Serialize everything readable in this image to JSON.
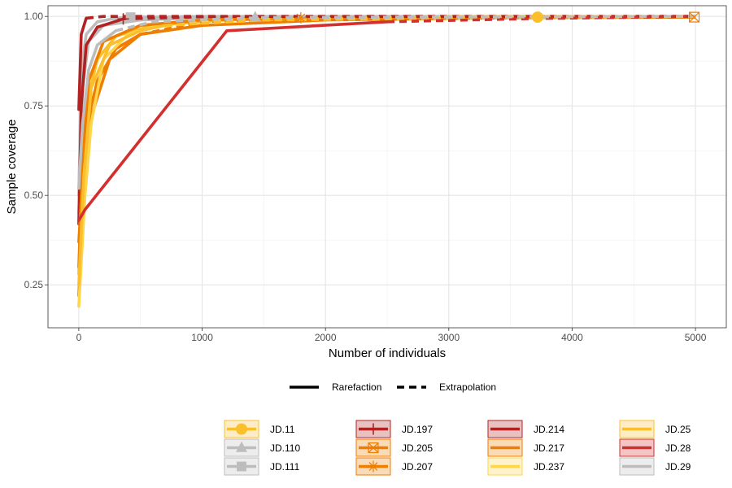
{
  "chart_data": {
    "type": "line",
    "xlabel": "Number of individuals",
    "ylabel": "Sample coverage",
    "xlim": [
      -250,
      5250
    ],
    "ylim": [
      0.13,
      1.03
    ],
    "x_ticks": [
      0,
      1000,
      2000,
      3000,
      4000,
      5000
    ],
    "x_tick_labels": [
      "0",
      "1000",
      "2000",
      "3000",
      "4000",
      "5000"
    ],
    "y_ticks": [
      0.25,
      0.5,
      0.75,
      1.0
    ],
    "y_tick_labels": [
      "0.25",
      "0.50",
      "0.75",
      "1.00"
    ],
    "grid": true,
    "linetype_legend": {
      "position": "bottom",
      "items": [
        {
          "label": "Rarefaction",
          "dash": "solid"
        },
        {
          "label": "Extrapolation",
          "dash": "dashed"
        }
      ]
    },
    "legend_position": "bottom",
    "series": [
      {
        "name": "JD.11",
        "color": "#fbbf2c",
        "shape": "circle",
        "observed_x": 3720,
        "points": [
          [
            0,
            0.28
          ],
          [
            30,
            0.55
          ],
          [
            80,
            0.78
          ],
          [
            150,
            0.88
          ],
          [
            300,
            0.945
          ],
          [
            600,
            0.975
          ],
          [
            1200,
            0.99
          ],
          [
            2500,
            0.996
          ],
          [
            3720,
            0.998
          ],
          [
            5000,
            1.0
          ]
        ]
      },
      {
        "name": "JD.110",
        "color": "#bdbdbd",
        "shape": "triangle",
        "observed_x": 1430,
        "points": [
          [
            0,
            0.45
          ],
          [
            30,
            0.8
          ],
          [
            80,
            0.93
          ],
          [
            200,
            0.975
          ],
          [
            500,
            0.99
          ],
          [
            1000,
            0.996
          ],
          [
            1430,
            0.998
          ],
          [
            3000,
            1.0
          ],
          [
            5000,
            1.0
          ]
        ]
      },
      {
        "name": "JD.111",
        "color": "#bdbdbd",
        "shape": "square",
        "observed_x": 420,
        "points": [
          [
            0,
            0.5
          ],
          [
            20,
            0.85
          ],
          [
            60,
            0.95
          ],
          [
            150,
            0.985
          ],
          [
            300,
            0.995
          ],
          [
            420,
            0.998
          ],
          [
            1000,
            1.0
          ],
          [
            5000,
            1.0
          ]
        ]
      },
      {
        "name": "JD.197",
        "color": "#b22222",
        "shape": "plus",
        "observed_x": 360,
        "points": [
          [
            0,
            0.42
          ],
          [
            20,
            0.75
          ],
          [
            60,
            0.92
          ],
          [
            150,
            0.97
          ],
          [
            360,
            0.993
          ],
          [
            1000,
            0.999
          ],
          [
            5000,
            1.0
          ]
        ]
      },
      {
        "name": "JD.205",
        "color": "#ee7d00",
        "shape": "boxcross",
        "observed_x": 4990,
        "points": [
          [
            0,
            0.22
          ],
          [
            40,
            0.5
          ],
          [
            100,
            0.72
          ],
          [
            250,
            0.88
          ],
          [
            500,
            0.95
          ],
          [
            1000,
            0.975
          ],
          [
            2000,
            0.99
          ],
          [
            3500,
            0.996
          ],
          [
            4990,
            0.998
          ]
        ]
      },
      {
        "name": "JD.207",
        "color": "#ee7d00",
        "shape": "asterisk",
        "observed_x": 1800,
        "points": [
          [
            0,
            0.3
          ],
          [
            30,
            0.6
          ],
          [
            80,
            0.82
          ],
          [
            200,
            0.93
          ],
          [
            500,
            0.975
          ],
          [
            1000,
            0.99
          ],
          [
            1800,
            0.996
          ],
          [
            3500,
            0.999
          ],
          [
            5000,
            1.0
          ]
        ]
      },
      {
        "name": "JD.214",
        "color": "#b22222",
        "shape": "none",
        "observed_x": 60,
        "points": [
          [
            0,
            0.74
          ],
          [
            20,
            0.95
          ],
          [
            60,
            0.995
          ],
          [
            200,
            1.0
          ],
          [
            5000,
            1.0
          ]
        ]
      },
      {
        "name": "JD.217",
        "color": "#ee7d00",
        "shape": "none",
        "observed_x": 500,
        "points": [
          [
            0,
            0.37
          ],
          [
            30,
            0.55
          ],
          [
            80,
            0.72
          ],
          [
            150,
            0.82
          ],
          [
            300,
            0.91
          ],
          [
            500,
            0.95
          ],
          [
            1000,
            0.985
          ],
          [
            2000,
            0.997
          ],
          [
            5000,
            1.0
          ]
        ]
      },
      {
        "name": "JD.237",
        "color": "#ffd54a",
        "shape": "none",
        "observed_x": 600,
        "points": [
          [
            0,
            0.19
          ],
          [
            50,
            0.5
          ],
          [
            100,
            0.7
          ],
          [
            200,
            0.88
          ],
          [
            400,
            0.95
          ],
          [
            600,
            0.97
          ],
          [
            1200,
            0.99
          ],
          [
            3000,
            0.999
          ],
          [
            5000,
            1.0
          ]
        ]
      },
      {
        "name": "JD.25",
        "color": "#fbbf2c",
        "shape": "none",
        "observed_x": 700,
        "points": [
          [
            0,
            0.25
          ],
          [
            40,
            0.55
          ],
          [
            100,
            0.8
          ],
          [
            250,
            0.92
          ],
          [
            500,
            0.96
          ],
          [
            700,
            0.975
          ],
          [
            1500,
            0.99
          ],
          [
            5000,
            1.0
          ]
        ]
      },
      {
        "name": "JD.28",
        "color": "#d32f2f",
        "shape": "none",
        "observed_x": 2500,
        "points": [
          [
            0,
            0.43
          ],
          [
            50,
            0.46
          ],
          [
            1200,
            0.96
          ],
          [
            2500,
            0.985
          ],
          [
            3700,
            0.994
          ],
          [
            5000,
            1.0
          ]
        ]
      },
      {
        "name": "JD.29",
        "color": "#bdbdbd",
        "shape": "none",
        "observed_x": 300,
        "points": [
          [
            0,
            0.52
          ],
          [
            30,
            0.7
          ],
          [
            80,
            0.85
          ],
          [
            150,
            0.92
          ],
          [
            300,
            0.96
          ],
          [
            600,
            0.985
          ],
          [
            1500,
            0.997
          ],
          [
            5000,
            1.0
          ]
        ]
      }
    ]
  }
}
